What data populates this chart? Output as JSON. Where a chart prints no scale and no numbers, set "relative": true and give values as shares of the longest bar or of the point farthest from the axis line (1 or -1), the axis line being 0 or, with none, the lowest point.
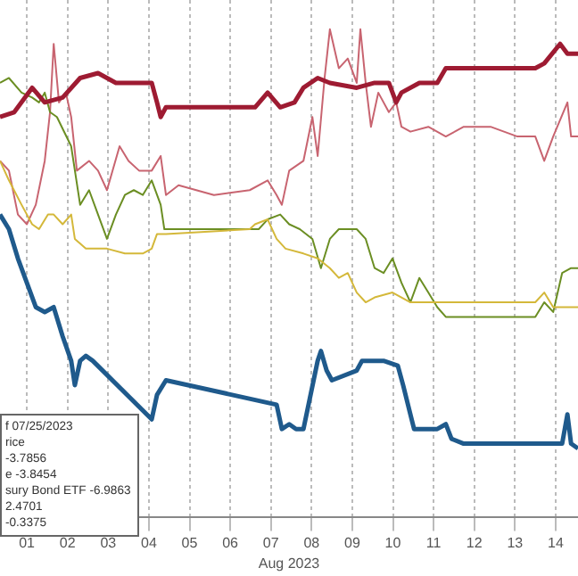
{
  "chart_data": {
    "type": "line",
    "relative": true,
    "xlabel": "Aug 2023",
    "xlim": [
      0.34,
      14.55
    ],
    "xticks": [
      {
        "value": 1,
        "label": "01"
      },
      {
        "value": 2,
        "label": "02"
      },
      {
        "value": 3,
        "label": "03"
      },
      {
        "value": 4,
        "label": "04"
      },
      {
        "value": 5,
        "label": "05"
      },
      {
        "value": 6,
        "label": "06"
      },
      {
        "value": 7,
        "label": "07"
      },
      {
        "value": 8,
        "label": "08"
      },
      {
        "value": 9,
        "label": "09"
      },
      {
        "value": 10,
        "label": "10"
      },
      {
        "value": 11,
        "label": "11"
      },
      {
        "value": 12,
        "label": "12"
      },
      {
        "value": 13,
        "label": "13"
      },
      {
        "value": 14,
        "label": "14"
      }
    ],
    "grid": "x",
    "legend": false,
    "marker": "none",
    "line_style": "solid",
    "annotations": [
      "f 07/25/2023",
      "rice",
      "-3.7856",
      "e -3.8454",
      "sury Bond ETF -6.9863",
      "2.4701",
      "-0.3375"
    ],
    "series": [
      {
        "color": "#9e1b32",
        "x": [
          0.34,
          0.69,
          1.13,
          1.44,
          1.88,
          2.31,
          2.75,
          3.19,
          3.5,
          3.85,
          4.07,
          4.2,
          4.29,
          4.42,
          5.6,
          6.61,
          6.92,
          7.23,
          7.58,
          7.8,
          8.15,
          8.45,
          9.11,
          9.55,
          9.9,
          10.08,
          10.21,
          10.65,
          11.09,
          11.3,
          11.74,
          13.5,
          13.72,
          14.11,
          14.29,
          14.55
        ],
        "values": [
          0.82,
          0.83,
          0.88,
          0.85,
          0.86,
          0.9,
          0.91,
          0.89,
          0.89,
          0.89,
          0.89,
          0.85,
          0.82,
          0.84,
          0.84,
          0.84,
          0.87,
          0.84,
          0.85,
          0.88,
          0.9,
          0.89,
          0.88,
          0.89,
          0.89,
          0.85,
          0.87,
          0.89,
          0.89,
          0.92,
          0.92,
          0.92,
          0.93,
          0.97,
          0.95,
          0.95
        ]
      },
      {
        "color": "#1f5a8c",
        "x": [
          0.34,
          0.56,
          0.78,
          1.0,
          1.22,
          1.44,
          1.66,
          1.88,
          2.09,
          2.18,
          2.31,
          2.45,
          2.62,
          4.07,
          4.2,
          4.42,
          7.14,
          7.27,
          7.45,
          7.62,
          7.8,
          8.15,
          8.23,
          8.37,
          8.5,
          9.11,
          9.24,
          9.38,
          9.77,
          10.12,
          10.25,
          10.43,
          10.52,
          11.09,
          11.3,
          11.44,
          11.74,
          14.16,
          14.29,
          14.38,
          14.55
        ],
        "values": [
          0.62,
          0.59,
          0.53,
          0.48,
          0.43,
          0.42,
          0.43,
          0.37,
          0.32,
          0.27,
          0.32,
          0.33,
          0.32,
          0.2,
          0.25,
          0.28,
          0.23,
          0.18,
          0.19,
          0.18,
          0.18,
          0.32,
          0.34,
          0.3,
          0.28,
          0.3,
          0.32,
          0.32,
          0.32,
          0.31,
          0.27,
          0.21,
          0.18,
          0.18,
          0.19,
          0.16,
          0.15,
          0.15,
          0.21,
          0.15,
          0.14
        ]
      },
      {
        "color": "#c86470",
        "x": [
          0.34,
          0.56,
          0.78,
          1.0,
          1.22,
          1.44,
          1.57,
          1.66,
          1.79,
          1.96,
          2.09,
          2.23,
          2.53,
          2.75,
          2.97,
          3.28,
          3.5,
          3.76,
          4.07,
          4.29,
          4.42,
          4.73,
          5.6,
          6.48,
          6.92,
          7.14,
          7.27,
          7.45,
          7.8,
          8.02,
          8.15,
          8.32,
          8.45,
          8.67,
          8.89,
          9.11,
          9.2,
          9.33,
          9.46,
          9.64,
          9.9,
          10.08,
          10.21,
          10.43,
          10.87,
          11.3,
          11.74,
          12.4,
          13.06,
          13.5,
          13.72,
          13.94,
          14.29,
          14.38,
          14.55
        ],
        "values": [
          0.73,
          0.71,
          0.62,
          0.6,
          0.64,
          0.73,
          0.83,
          0.97,
          0.85,
          0.87,
          0.82,
          0.71,
          0.73,
          0.71,
          0.67,
          0.76,
          0.73,
          0.71,
          0.71,
          0.74,
          0.66,
          0.68,
          0.66,
          0.67,
          0.69,
          0.66,
          0.64,
          0.71,
          0.73,
          0.82,
          0.74,
          0.9,
          1,
          0.92,
          0.94,
          0.89,
          1,
          0.89,
          0.8,
          0.87,
          0.83,
          0.85,
          0.8,
          0.79,
          0.8,
          0.78,
          0.8,
          0.8,
          0.78,
          0.78,
          0.73,
          0.78,
          0.85,
          0.78,
          0.78
        ]
      },
      {
        "color": "#6b8e23",
        "x": [
          0.34,
          0.56,
          0.87,
          1.13,
          1.3,
          1.44,
          1.57,
          1.74,
          2.09,
          2.31,
          2.53,
          2.75,
          2.97,
          3.19,
          3.41,
          3.63,
          3.85,
          4.07,
          4.29,
          4.38,
          4.51,
          6.7,
          6.92,
          7.23,
          7.45,
          7.71,
          8.02,
          8.23,
          8.45,
          8.67,
          8.89,
          9.11,
          9.33,
          9.55,
          9.77,
          9.99,
          10.21,
          10.43,
          10.65,
          10.87,
          11.09,
          11.3,
          11.52,
          13.5,
          13.72,
          13.94,
          14.16,
          14.38,
          14.55
        ],
        "values": [
          0.89,
          0.9,
          0.87,
          0.86,
          0.85,
          0.87,
          0.83,
          0.82,
          0.76,
          0.64,
          0.67,
          0.62,
          0.57,
          0.62,
          0.66,
          0.67,
          0.66,
          0.69,
          0.64,
          0.59,
          0.59,
          0.59,
          0.61,
          0.62,
          0.6,
          0.59,
          0.57,
          0.51,
          0.57,
          0.59,
          0.59,
          0.59,
          0.57,
          0.51,
          0.5,
          0.53,
          0.48,
          0.44,
          0.49,
          0.46,
          0.43,
          0.41,
          0.41,
          0.41,
          0.44,
          0.42,
          0.5,
          0.51,
          0.51
        ]
      },
      {
        "color": "#d4b83a",
        "x": [
          0.34,
          0.56,
          0.87,
          1.13,
          1.3,
          1.52,
          1.66,
          1.88,
          2.09,
          2.18,
          2.45,
          2.97,
          3.41,
          3.85,
          4.07,
          4.2,
          4.42,
          6.48,
          6.61,
          6.92,
          7.14,
          7.36,
          7.8,
          8.15,
          8.45,
          8.67,
          8.89,
          9.11,
          9.33,
          9.55,
          9.99,
          10.43,
          11.09,
          11.39,
          13.5,
          13.72,
          13.94,
          14.29,
          14.55
        ],
        "values": [
          0.73,
          0.69,
          0.64,
          0.6,
          0.59,
          0.62,
          0.62,
          0.6,
          0.62,
          0.57,
          0.55,
          0.55,
          0.54,
          0.54,
          0.55,
          0.58,
          0.58,
          0.59,
          0.6,
          0.61,
          0.57,
          0.55,
          0.54,
          0.53,
          0.51,
          0.49,
          0.5,
          0.46,
          0.44,
          0.45,
          0.46,
          0.44,
          0.44,
          0.44,
          0.44,
          0.46,
          0.43,
          0.43,
          0.43
        ]
      }
    ]
  }
}
